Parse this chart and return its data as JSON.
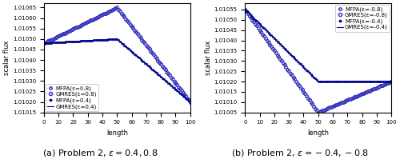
{
  "subplot_a": {
    "caption": "(a) Problem 2, $\\epsilon = 0.4, 0.8$",
    "xlabel": "length",
    "ylabel": "scalar flux",
    "xlim": [
      0,
      100
    ],
    "ylim": [
      1.01015,
      1.01067
    ],
    "yticks": [
      1.01015,
      1.0102,
      1.01025,
      1.0103,
      1.01035,
      1.0104,
      1.01045,
      1.0105,
      1.01055,
      1.0106,
      1.01065
    ],
    "xticks": [
      0,
      10,
      20,
      30,
      40,
      50,
      60,
      70,
      80,
      90,
      100
    ],
    "curve_08_start": 1.01048,
    "curve_08_peak": 1.01065,
    "curve_08_peak_x": 50,
    "curve_08_end": 1.0102,
    "curve_04_start": 1.01048,
    "curve_04_flat_end": 1.0105,
    "curve_04_end": 1.0102,
    "legend_order": [
      "MFPA_08",
      "GMRES_08",
      "MFPA_04",
      "GMRES_04"
    ],
    "legend_labels": [
      "MFPA(ε=0.8)",
      "GMRES(ε=0.8)",
      "MFPA(ε=0.4)",
      "GMRES(ε=0.4)"
    ],
    "legend_loc": "lower left"
  },
  "subplot_b": {
    "caption": "(b) Problem 2, $\\epsilon = -0.4, -0.8$",
    "xlabel": "length",
    "ylabel": "scalar flux",
    "xlim": [
      0,
      100
    ],
    "ylim": [
      1.01005,
      1.01058
    ],
    "yticks": [
      1.01005,
      1.0101,
      1.01015,
      1.0102,
      1.01025,
      1.0103,
      1.01035,
      1.0104,
      1.01045,
      1.0105,
      1.01055
    ],
    "xticks": [
      0,
      10,
      20,
      30,
      40,
      50,
      60,
      70,
      80,
      90,
      100
    ],
    "curve_m08_start": 1.01055,
    "curve_m08_min": 1.01005,
    "curve_m08_min_x": 50,
    "curve_m08_end": 1.0102,
    "curve_m04_start": 1.01055,
    "curve_m04_flat": 1.0102,
    "curve_m04_flat_x": 50,
    "legend_order": [
      "MFPA_m08",
      "GMRES_m08",
      "MFPA_m04",
      "GMRES_m04"
    ],
    "legend_labels": [
      "MFPA(ε=-0.8)",
      "GMRES(ε=-0.8)",
      "MFPA(ε=-0.4)",
      "GMRES(ε=-0.4)"
    ],
    "legend_loc": "upper right"
  },
  "color_open": "#3333bb",
  "color_filled": "#00008b",
  "marker_open": "o",
  "marker_filled": "s",
  "markersize_open": 2.5,
  "markersize_filled": 2.0,
  "linewidth_dotted": 0.4,
  "linewidth_solid": 0.8,
  "tick_fontsize": 5,
  "label_fontsize": 6,
  "caption_fontsize": 8,
  "legend_fontsize": 5
}
